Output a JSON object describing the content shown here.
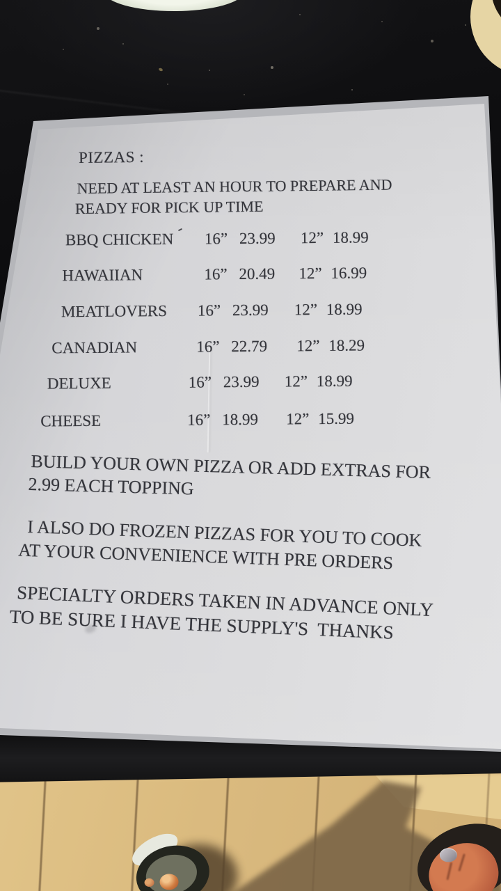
{
  "menu": {
    "title": "PIZZAS :",
    "prep_note": {
      "line1": "NEED AT LEAST AN HOUR TO PREPARE AND",
      "line2": "READY FOR PICK UP TIME"
    },
    "sizes": {
      "large": "16”",
      "small": "12”"
    },
    "items": [
      {
        "name": "BBQ CHICKEN",
        "price_large": "23.99",
        "price_small": "18.99"
      },
      {
        "name": "HAWAIIAN",
        "price_large": "20.49",
        "price_small": "16.99"
      },
      {
        "name": "MEATLOVERS",
        "price_large": "23.99",
        "price_small": "18.99"
      },
      {
        "name": "CANADIAN",
        "price_large": "22.79",
        "price_small": "18.29"
      },
      {
        "name": "DELUXE",
        "price_large": "23.99",
        "price_small": "18.99"
      },
      {
        "name": "CHEESE",
        "price_large": "18.99",
        "price_small": "15.99"
      }
    ],
    "notes": [
      {
        "line1": "BUILD YOUR OWN PIZZA OR ADD EXTRAS FOR",
        "line2": "2.99 EACH TOPPING"
      },
      {
        "line1": "I ALSO DO FROZEN PIZZAS FOR YOU TO COOK",
        "line2": "AT YOUR CONVENIENCE WITH PRE ORDERS"
      },
      {
        "line1": "SPECIALTY ORDERS TAKEN IN ADVANCE ONLY",
        "line2": "TO BE SURE I HAVE THE SUPPLY'S  THANKS"
      }
    ]
  },
  "colors": {
    "paper": "#d9d9db",
    "ink": "#34353b",
    "table": "#0d0d0f",
    "floor_sunlit": "#ddbc82",
    "floor_shadow": "#786244",
    "toenail_copper": "#d07c41",
    "toenail_silver": "#a5a1a8"
  }
}
